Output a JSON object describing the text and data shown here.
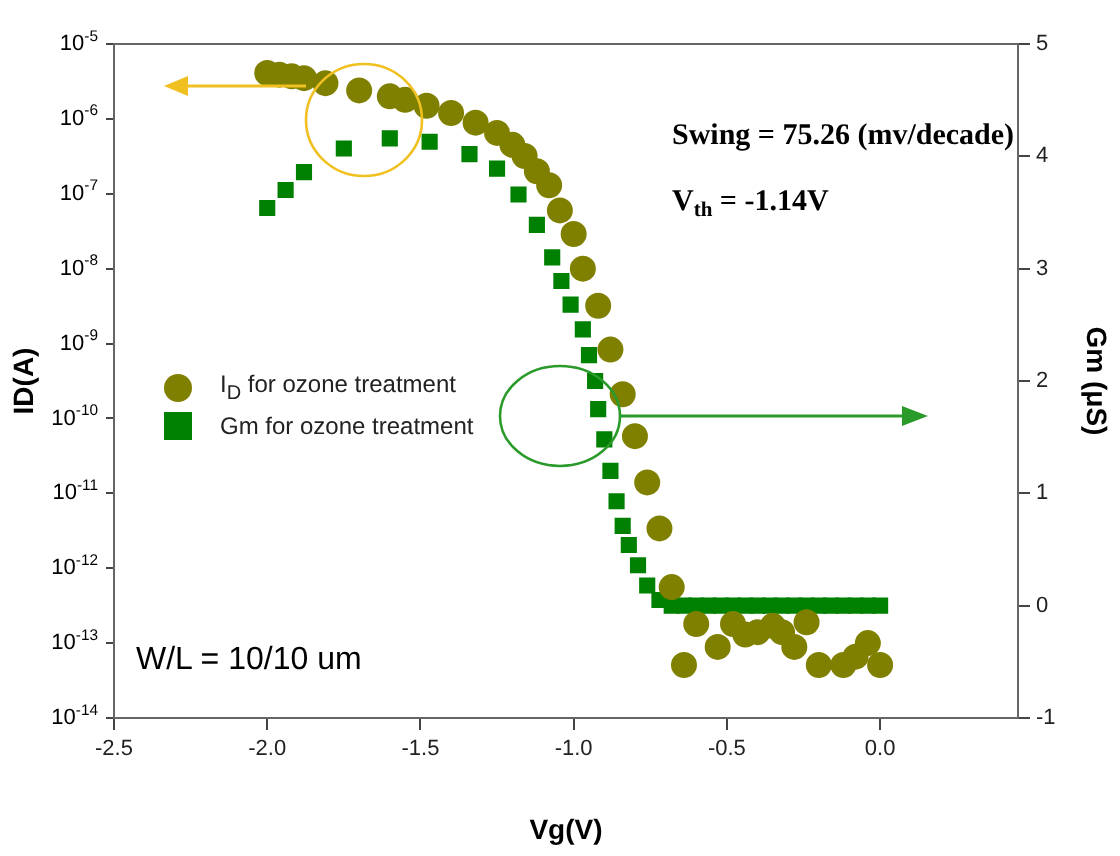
{
  "chart_data": {
    "type": "scatter",
    "xlabel": "Vg(V)",
    "ylabel": "ID(A)",
    "y2label": "Gm (μS)",
    "xlim": [
      -2.5,
      0.45
    ],
    "xticks": [
      {
        "value": -2.5,
        "label": "-2.5"
      },
      {
        "value": -2,
        "label": "-2.0"
      },
      {
        "value": -1.5,
        "label": "-1.5"
      },
      {
        "value": -1,
        "label": "-1.0"
      },
      {
        "value": -0.5,
        "label": "-0.5"
      },
      {
        "value": 0,
        "label": "0.0"
      }
    ],
    "log": "y",
    "ylim": [
      1e-14,
      1e-05
    ],
    "yticks": [
      {
        "value": 1e-14,
        "label": "10$^{-14}$"
      },
      {
        "value": 1e-13,
        "label": "10$^{-13}$"
      },
      {
        "value": 1e-12,
        "label": "10$^{-12}$"
      },
      {
        "value": 1e-11,
        "label": "10$^{-11}$"
      },
      {
        "value": 1e-10,
        "label": "10$^{-10}$"
      },
      {
        "value": 1e-09,
        "label": "10$^{-9}$"
      },
      {
        "value": 1e-08,
        "label": "10$^{-8}$"
      },
      {
        "value": 1e-07,
        "label": "10$^{-7}$"
      },
      {
        "value": 1e-06,
        "label": "10$^{-6}$"
      },
      {
        "value": 1e-05,
        "label": "10$^{-5}$"
      }
    ],
    "y2lim": [
      -1,
      5
    ],
    "y2ticks": [
      -1,
      0,
      1,
      2,
      3,
      4,
      5
    ],
    "grid": false,
    "legend": "left",
    "series": [
      {
        "name": "I$_{D}$ for ozone treatment",
        "color": "#808000",
        "marker": "circle",
        "x": [
          -2.0,
          -1.96,
          -1.92,
          -1.88,
          -1.81,
          -1.7,
          -1.6,
          -1.55,
          -1.48,
          -1.4,
          -1.32,
          -1.25,
          -1.2,
          -1.16,
          -1.12,
          -1.08,
          -1.045,
          -1.0,
          -0.97,
          -0.92,
          -0.88,
          -0.84,
          -0.8,
          -0.76,
          -0.72,
          -0.68,
          -0.64,
          -0.6,
          -0.53,
          -0.48,
          -0.44,
          -0.4,
          -0.35,
          -0.32,
          -0.28,
          -0.24,
          -0.2,
          -0.12,
          -0.08,
          -0.04,
          0.0
        ],
        "values": [
          4.1e-06,
          3.9e-06,
          3.7e-06,
          3.5e-06,
          3e-06,
          2.4e-06,
          2e-06,
          1.8e-06,
          1.5e-06,
          1.2e-06,
          8.9e-07,
          6.5e-07,
          4.5e-07,
          3.2e-07,
          2e-07,
          1.3e-07,
          6e-08,
          2.9e-08,
          1e-08,
          3.2e-09,
          8.3e-10,
          2.1e-10,
          5.8e-11,
          1.4e-11,
          3.4e-12,
          5.6e-13,
          5.1e-14,
          1.8e-13,
          8.9e-14,
          1.8e-13,
          1.3e-13,
          1.4e-13,
          1.7e-13,
          1.4e-13,
          8.9e-14,
          1.9e-13,
          5.1e-14,
          5.1e-14,
          6.6e-14,
          1e-13,
          5.1e-14
        ]
      },
      {
        "name": "Gm for ozone treatment",
        "color": "#008000",
        "marker": "square",
        "axis": "y2",
        "x": [
          -2.0,
          -1.94,
          -1.88,
          -1.75,
          -1.6,
          -1.47,
          -1.34,
          -1.25,
          -1.18,
          -1.12,
          -1.07,
          -1.04,
          -1.01,
          -0.97,
          -0.95,
          -0.93,
          -0.92,
          -0.9,
          -0.88,
          -0.86,
          -0.84,
          -0.82,
          -0.79,
          -0.76,
          -0.72,
          -0.68,
          -0.64,
          -0.6,
          -0.56,
          -0.52,
          -0.48,
          -0.44,
          -0.4,
          -0.36,
          -0.32,
          -0.28,
          -0.24,
          -0.2,
          -0.16,
          -0.12,
          -0.08,
          -0.04,
          0.0
        ],
        "values": [
          3.54,
          3.7,
          3.86,
          4.07,
          4.16,
          4.13,
          4.02,
          3.89,
          3.66,
          3.39,
          3.1,
          2.89,
          2.68,
          2.46,
          2.23,
          2.0,
          1.75,
          1.48,
          1.2,
          0.93,
          0.71,
          0.54,
          0.36,
          0.18,
          0.05,
          0,
          0,
          0,
          0,
          0,
          0,
          0,
          0,
          0,
          0,
          0,
          0,
          0,
          0,
          0,
          0,
          0,
          0
        ]
      }
    ],
    "annotations": [
      "Swing = 75.26 (mv/decade)",
      "V$_{th}$ = -1.14V",
      "W/L = 10/10 um"
    ]
  }
}
